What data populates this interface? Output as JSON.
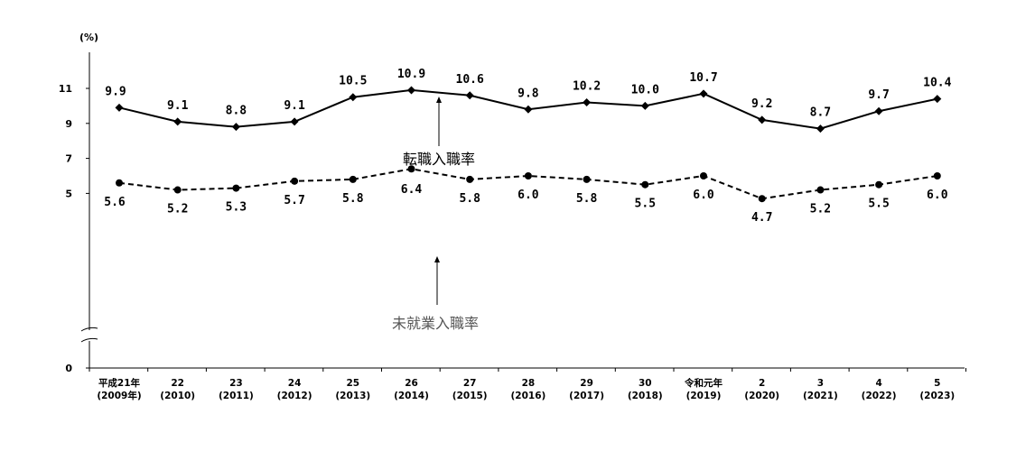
{
  "chart_data": {
    "type": "line",
    "unit_label": "(%)",
    "y_ticks": [
      "0",
      "5",
      "7",
      "9",
      "11"
    ],
    "axis_break": true,
    "categories": [
      [
        "平成21年",
        "(2009年)"
      ],
      [
        "22",
        "(2010)"
      ],
      [
        "23",
        "(2011)"
      ],
      [
        "24",
        "(2012)"
      ],
      [
        "25",
        "(2013)"
      ],
      [
        "26",
        "(2014)"
      ],
      [
        "27",
        "(2015)"
      ],
      [
        "28",
        "(2016)"
      ],
      [
        "29",
        "(2017)"
      ],
      [
        "30",
        "(2018)"
      ],
      [
        "令和元年",
        "(2019)"
      ],
      [
        "2",
        "(2020)"
      ],
      [
        "3",
        "(2021)"
      ],
      [
        "4",
        "(2022)"
      ],
      [
        "5",
        "(2023)"
      ]
    ],
    "series": [
      {
        "name": "転職入職率",
        "marker": "diamond",
        "line": "solid",
        "color": "#000000",
        "label_color": "#000000",
        "values": [
          9.9,
          9.1,
          8.8,
          9.1,
          10.5,
          10.9,
          10.6,
          9.8,
          10.2,
          10.0,
          10.7,
          9.2,
          8.7,
          9.7,
          10.4
        ],
        "value_labels": [
          "9.9",
          "9.1",
          "8.8",
          "9.1",
          "10.5",
          "10.9",
          "10.6",
          "9.8",
          "10.2",
          "10.0",
          "10.7",
          "9.2",
          "8.7",
          "9.7",
          "10.4"
        ]
      },
      {
        "name": "未就業入職率",
        "marker": "circle",
        "line": "dashed",
        "color": "#000000",
        "label_color": "#555555",
        "values": [
          5.6,
          5.2,
          5.3,
          5.7,
          5.8,
          6.4,
          5.8,
          6.0,
          5.8,
          5.5,
          6.0,
          4.7,
          5.2,
          5.5,
          6.0
        ],
        "value_labels": [
          "5.6",
          "5.2",
          "5.3",
          "5.7",
          "5.8",
          "6.4",
          "5.8",
          "6.0",
          "5.8",
          "5.5",
          "6.0",
          "4.7",
          "5.2",
          "5.5",
          "6.0"
        ]
      }
    ]
  }
}
